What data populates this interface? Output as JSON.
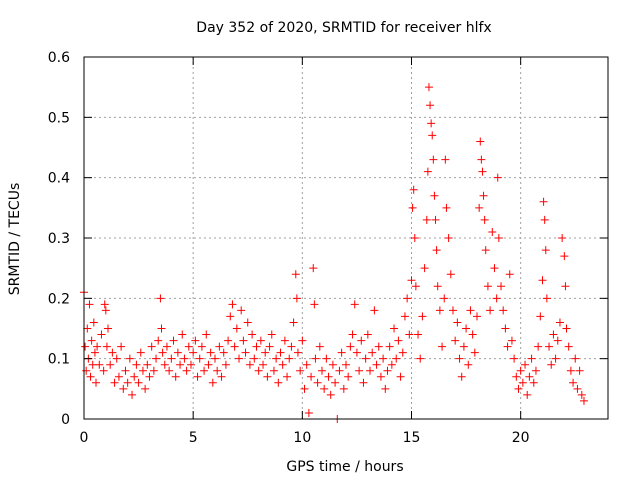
{
  "chart_data": {
    "type": "scatter",
    "title": "Day 352 of 2020, SRMTID for receiver hlfx",
    "xlabel": "GPS time / hours",
    "ylabel": "SRMTID / TECUs",
    "xlim": [
      0,
      24
    ],
    "ylim": [
      0,
      0.6
    ],
    "x_ticks": [
      0,
      5,
      10,
      15,
      20
    ],
    "y_ticks": [
      0,
      0.1,
      0.2,
      0.3,
      0.4,
      0.5,
      0.6
    ],
    "x_tick_labels": [
      "0",
      "5",
      "10",
      "15",
      "20"
    ],
    "y_tick_labels": [
      "0",
      "0.1",
      "0.2",
      "0.3",
      "0.4",
      "0.5",
      "0.6"
    ],
    "grid": true,
    "marker": "+",
    "color": "#ff0000",
    "series": [
      {
        "name": "SRMTID",
        "points": [
          [
            0.0,
            0.21
          ],
          [
            0.05,
            0.12
          ],
          [
            0.1,
            0.08
          ],
          [
            0.15,
            0.15
          ],
          [
            0.2,
            0.1
          ],
          [
            0.25,
            0.19
          ],
          [
            0.3,
            0.07
          ],
          [
            0.35,
            0.13
          ],
          [
            0.4,
            0.09
          ],
          [
            0.45,
            0.16
          ],
          [
            0.5,
            0.11
          ],
          [
            0.55,
            0.06
          ],
          [
            0.6,
            0.12
          ],
          [
            0.7,
            0.09
          ],
          [
            0.8,
            0.14
          ],
          [
            0.9,
            0.08
          ],
          [
            0.95,
            0.19
          ],
          [
            1.0,
            0.18
          ],
          [
            1.05,
            0.12
          ],
          [
            1.1,
            0.15
          ],
          [
            1.2,
            0.09
          ],
          [
            1.3,
            0.11
          ],
          [
            1.4,
            0.06
          ],
          [
            1.5,
            0.1
          ],
          [
            1.6,
            0.07
          ],
          [
            1.7,
            0.12
          ],
          [
            1.8,
            0.05
          ],
          [
            1.9,
            0.08
          ],
          [
            2.0,
            0.06
          ],
          [
            2.1,
            0.1
          ],
          [
            2.2,
            0.04
          ],
          [
            2.3,
            0.07
          ],
          [
            2.4,
            0.09
          ],
          [
            2.5,
            0.06
          ],
          [
            2.6,
            0.11
          ],
          [
            2.7,
            0.08
          ],
          [
            2.8,
            0.05
          ],
          [
            2.9,
            0.09
          ],
          [
            3.0,
            0.07
          ],
          [
            3.1,
            0.12
          ],
          [
            3.2,
            0.08
          ],
          [
            3.3,
            0.1
          ],
          [
            3.4,
            0.13
          ],
          [
            3.5,
            0.2
          ],
          [
            3.55,
            0.15
          ],
          [
            3.6,
            0.11
          ],
          [
            3.7,
            0.09
          ],
          [
            3.8,
            0.12
          ],
          [
            3.9,
            0.08
          ],
          [
            4.0,
            0.1
          ],
          [
            4.1,
            0.13
          ],
          [
            4.2,
            0.07
          ],
          [
            4.3,
            0.11
          ],
          [
            4.4,
            0.09
          ],
          [
            4.5,
            0.14
          ],
          [
            4.6,
            0.1
          ],
          [
            4.7,
            0.08
          ],
          [
            4.8,
            0.12
          ],
          [
            4.9,
            0.09
          ],
          [
            5.0,
            0.11
          ],
          [
            5.1,
            0.13
          ],
          [
            5.2,
            0.07
          ],
          [
            5.3,
            0.1
          ],
          [
            5.4,
            0.12
          ],
          [
            5.5,
            0.08
          ],
          [
            5.6,
            0.14
          ],
          [
            5.7,
            0.09
          ],
          [
            5.8,
            0.11
          ],
          [
            5.9,
            0.06
          ],
          [
            6.0,
            0.1
          ],
          [
            6.1,
            0.08
          ],
          [
            6.2,
            0.12
          ],
          [
            6.3,
            0.07
          ],
          [
            6.4,
            0.11
          ],
          [
            6.5,
            0.09
          ],
          [
            6.6,
            0.13
          ],
          [
            6.7,
            0.17
          ],
          [
            6.8,
            0.19
          ],
          [
            6.9,
            0.12
          ],
          [
            7.0,
            0.15
          ],
          [
            7.1,
            0.1
          ],
          [
            7.2,
            0.18
          ],
          [
            7.3,
            0.13
          ],
          [
            7.4,
            0.11
          ],
          [
            7.5,
            0.16
          ],
          [
            7.6,
            0.09
          ],
          [
            7.7,
            0.14
          ],
          [
            7.8,
            0.1
          ],
          [
            7.9,
            0.12
          ],
          [
            8.0,
            0.08
          ],
          [
            8.1,
            0.13
          ],
          [
            8.2,
            0.09
          ],
          [
            8.3,
            0.11
          ],
          [
            8.4,
            0.07
          ],
          [
            8.5,
            0.12
          ],
          [
            8.6,
            0.14
          ],
          [
            8.7,
            0.08
          ],
          [
            8.8,
            0.1
          ],
          [
            8.9,
            0.06
          ],
          [
            9.0,
            0.11
          ],
          [
            9.1,
            0.09
          ],
          [
            9.2,
            0.13
          ],
          [
            9.3,
            0.07
          ],
          [
            9.4,
            0.1
          ],
          [
            9.5,
            0.12
          ],
          [
            9.6,
            0.16
          ],
          [
            9.7,
            0.24
          ],
          [
            9.75,
            0.2
          ],
          [
            9.8,
            0.11
          ],
          [
            9.9,
            0.08
          ],
          [
            10.0,
            0.13
          ],
          [
            10.1,
            0.05
          ],
          [
            10.2,
            0.09
          ],
          [
            10.3,
            0.01
          ],
          [
            10.4,
            0.07
          ],
          [
            10.5,
            0.25
          ],
          [
            10.55,
            0.19
          ],
          [
            10.6,
            0.1
          ],
          [
            10.7,
            0.06
          ],
          [
            10.8,
            0.12
          ],
          [
            10.9,
            0.08
          ],
          [
            11.0,
            0.05
          ],
          [
            11.1,
            0.1
          ],
          [
            11.2,
            0.07
          ],
          [
            11.3,
            0.04
          ],
          [
            11.4,
            0.09
          ],
          [
            11.5,
            0.06
          ],
          [
            11.6,
            0.0
          ],
          [
            11.7,
            0.08
          ],
          [
            11.8,
            0.11
          ],
          [
            11.9,
            0.05
          ],
          [
            12.0,
            0.09
          ],
          [
            12.1,
            0.07
          ],
          [
            12.2,
            0.12
          ],
          [
            12.3,
            0.14
          ],
          [
            12.4,
            0.19
          ],
          [
            12.5,
            0.11
          ],
          [
            12.6,
            0.08
          ],
          [
            12.7,
            0.13
          ],
          [
            12.8,
            0.06
          ],
          [
            12.9,
            0.1
          ],
          [
            13.0,
            0.14
          ],
          [
            13.1,
            0.08
          ],
          [
            13.2,
            0.11
          ],
          [
            13.3,
            0.18
          ],
          [
            13.4,
            0.09
          ],
          [
            13.5,
            0.12
          ],
          [
            13.6,
            0.07
          ],
          [
            13.7,
            0.1
          ],
          [
            13.8,
            0.05
          ],
          [
            13.9,
            0.08
          ],
          [
            14.0,
            0.12
          ],
          [
            14.1,
            0.09
          ],
          [
            14.2,
            0.15
          ],
          [
            14.3,
            0.1
          ],
          [
            14.4,
            0.13
          ],
          [
            14.5,
            0.07
          ],
          [
            14.6,
            0.11
          ],
          [
            14.7,
            0.17
          ],
          [
            14.8,
            0.2
          ],
          [
            14.9,
            0.14
          ],
          [
            15.0,
            0.23
          ],
          [
            15.05,
            0.35
          ],
          [
            15.1,
            0.38
          ],
          [
            15.15,
            0.3
          ],
          [
            15.2,
            0.22
          ],
          [
            15.3,
            0.14
          ],
          [
            15.4,
            0.1
          ],
          [
            15.5,
            0.17
          ],
          [
            15.6,
            0.25
          ],
          [
            15.7,
            0.33
          ],
          [
            15.75,
            0.41
          ],
          [
            15.8,
            0.55
          ],
          [
            15.85,
            0.52
          ],
          [
            15.9,
            0.49
          ],
          [
            15.95,
            0.47
          ],
          [
            16.0,
            0.43
          ],
          [
            16.05,
            0.37
          ],
          [
            16.1,
            0.33
          ],
          [
            16.15,
            0.28
          ],
          [
            16.2,
            0.22
          ],
          [
            16.3,
            0.18
          ],
          [
            16.4,
            0.12
          ],
          [
            16.5,
            0.2
          ],
          [
            16.55,
            0.43
          ],
          [
            16.6,
            0.35
          ],
          [
            16.7,
            0.3
          ],
          [
            16.8,
            0.24
          ],
          [
            16.9,
            0.18
          ],
          [
            17.0,
            0.13
          ],
          [
            17.1,
            0.16
          ],
          [
            17.2,
            0.1
          ],
          [
            17.3,
            0.07
          ],
          [
            17.4,
            0.12
          ],
          [
            17.5,
            0.15
          ],
          [
            17.6,
            0.09
          ],
          [
            17.7,
            0.18
          ],
          [
            17.8,
            0.14
          ],
          [
            17.9,
            0.11
          ],
          [
            18.0,
            0.17
          ],
          [
            18.1,
            0.35
          ],
          [
            18.15,
            0.46
          ],
          [
            18.2,
            0.43
          ],
          [
            18.25,
            0.41
          ],
          [
            18.3,
            0.37
          ],
          [
            18.35,
            0.33
          ],
          [
            18.4,
            0.28
          ],
          [
            18.5,
            0.22
          ],
          [
            18.6,
            0.18
          ],
          [
            18.7,
            0.31
          ],
          [
            18.8,
            0.25
          ],
          [
            18.9,
            0.2
          ],
          [
            18.95,
            0.4
          ],
          [
            19.0,
            0.3
          ],
          [
            19.1,
            0.22
          ],
          [
            19.2,
            0.18
          ],
          [
            19.3,
            0.15
          ],
          [
            19.4,
            0.12
          ],
          [
            19.5,
            0.24
          ],
          [
            19.6,
            0.13
          ],
          [
            19.7,
            0.1
          ],
          [
            19.8,
            0.07
          ],
          [
            19.9,
            0.05
          ],
          [
            20.0,
            0.08
          ],
          [
            20.1,
            0.06
          ],
          [
            20.2,
            0.09
          ],
          [
            20.3,
            0.04
          ],
          [
            20.4,
            0.07
          ],
          [
            20.5,
            0.1
          ],
          [
            20.6,
            0.06
          ],
          [
            20.7,
            0.08
          ],
          [
            20.8,
            0.12
          ],
          [
            20.9,
            0.17
          ],
          [
            21.0,
            0.23
          ],
          [
            21.05,
            0.36
          ],
          [
            21.1,
            0.33
          ],
          [
            21.15,
            0.28
          ],
          [
            21.2,
            0.2
          ],
          [
            21.3,
            0.12
          ],
          [
            21.4,
            0.09
          ],
          [
            21.5,
            0.14
          ],
          [
            21.6,
            0.1
          ],
          [
            21.7,
            0.13
          ],
          [
            21.8,
            0.16
          ],
          [
            21.9,
            0.3
          ],
          [
            22.0,
            0.27
          ],
          [
            22.05,
            0.22
          ],
          [
            22.1,
            0.15
          ],
          [
            22.2,
            0.12
          ],
          [
            22.3,
            0.08
          ],
          [
            22.4,
            0.06
          ],
          [
            22.5,
            0.1
          ],
          [
            22.6,
            0.05
          ],
          [
            22.7,
            0.08
          ],
          [
            22.8,
            0.04
          ],
          [
            22.9,
            0.03
          ]
        ]
      }
    ]
  }
}
